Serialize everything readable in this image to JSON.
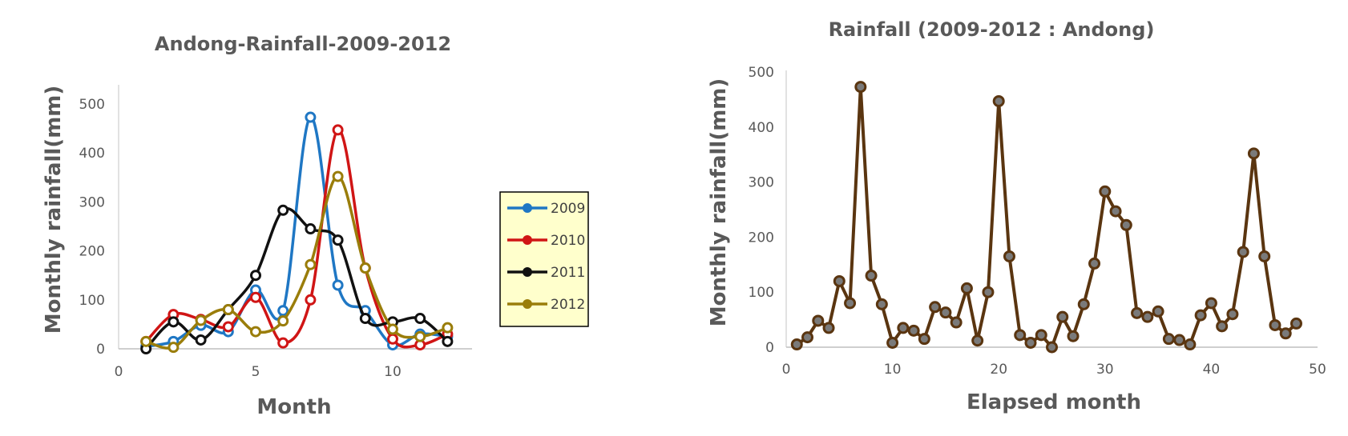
{
  "chart_data": [
    {
      "type": "line",
      "title": "Andong-Rainfall-2009-2012",
      "xlabel": "Month",
      "ylabel": "Monthly rainfall(mm)",
      "xlim": [
        0,
        12.5
      ],
      "ylim": [
        0,
        500
      ],
      "x_ticks": [
        "0",
        "5",
        "10"
      ],
      "x_tick_values": [
        0,
        5,
        10
      ],
      "y_ticks": [
        "0",
        "100",
        "200",
        "300",
        "400",
        "500"
      ],
      "y_tick_values": [
        0,
        100,
        200,
        300,
        400,
        500
      ],
      "legend_position": "right",
      "grid": false,
      "smooth": true,
      "x": [
        1,
        2,
        3,
        4,
        5,
        6,
        7,
        8,
        9,
        10,
        11,
        12
      ],
      "series": [
        {
          "name": "2009",
          "color": "#1f77c4",
          "values": [
            5,
            15,
            48,
            35,
            120,
            78,
            473,
            130,
            78,
            8,
            30,
            25
          ]
        },
        {
          "name": "2010",
          "color": "#d01515",
          "values": [
            15,
            70,
            60,
            45,
            105,
            12,
            100,
            447,
            165,
            20,
            8,
            30
          ]
        },
        {
          "name": "2011",
          "color": "#111111",
          "values": [
            0,
            55,
            18,
            80,
            150,
            283,
            245,
            222,
            62,
            55,
            62,
            15
          ]
        },
        {
          "name": "2012",
          "color": "#9a7d0a",
          "values": [
            15,
            3,
            58,
            80,
            35,
            57,
            172,
            352,
            165,
            40,
            25,
            43
          ]
        }
      ]
    },
    {
      "type": "line",
      "title": "Rainfall (2009-2012 : Andong)",
      "xlabel": "Elapsed  month",
      "ylabel": "Monthly rainfall(mm)",
      "xlim": [
        0,
        50
      ],
      "ylim": [
        0,
        500
      ],
      "x_ticks": [
        "0",
        "10",
        "20",
        "30",
        "40",
        "50"
      ],
      "x_tick_values": [
        0,
        10,
        20,
        30,
        40,
        50
      ],
      "y_ticks": [
        "0",
        "100",
        "200",
        "300",
        "400",
        "500"
      ],
      "y_tick_values": [
        0,
        100,
        200,
        300,
        400,
        500
      ],
      "grid": false,
      "smooth": false,
      "x": [
        1,
        2,
        3,
        4,
        5,
        6,
        7,
        8,
        9,
        10,
        11,
        12,
        13,
        14,
        15,
        16,
        17,
        18,
        19,
        20,
        21,
        22,
        23,
        24,
        25,
        26,
        27,
        28,
        29,
        30,
        31,
        32,
        33,
        34,
        35,
        36,
        37,
        38,
        39,
        40,
        41,
        42,
        43,
        44,
        45,
        46,
        47,
        48
      ],
      "series": [
        {
          "color": "#5a3510",
          "values": [
            5,
            18,
            48,
            35,
            120,
            80,
            473,
            130,
            78,
            8,
            35,
            30,
            15,
            73,
            63,
            45,
            107,
            12,
            100,
            447,
            165,
            22,
            8,
            22,
            0,
            55,
            20,
            78,
            152,
            283,
            247,
            222,
            62,
            55,
            65,
            15,
            13,
            5,
            58,
            80,
            38,
            60,
            173,
            352,
            165,
            40,
            25,
            43
          ]
        }
      ]
    }
  ]
}
